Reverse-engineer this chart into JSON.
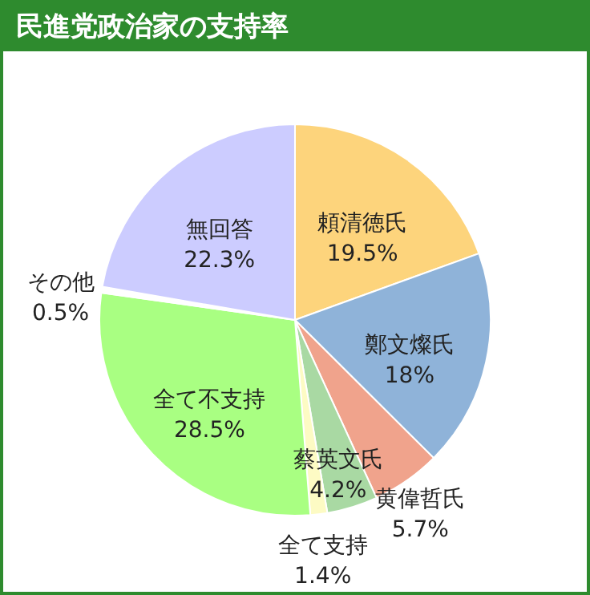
{
  "chart_data": {
    "type": "pie",
    "title": "民進党政治家の支持率",
    "categories": [
      "頼清徳氏",
      "鄭文燦氏",
      "黄偉哲氏",
      "蔡英文氏",
      "全て支持",
      "全て不支持",
      "その他",
      "無回答"
    ],
    "values": [
      19.5,
      18,
      5.7,
      4.2,
      1.4,
      28.5,
      0.5,
      22.3
    ],
    "value_labels": [
      "19.5%",
      "18%",
      "5.7%",
      "4.2%",
      "1.4%",
      "28.5%",
      "0.5%",
      "22.3%"
    ],
    "colors": [
      "#fdd47c",
      "#8fb3d9",
      "#f0a38c",
      "#a9d9a3",
      "#fdfbc4",
      "#a9ff82",
      "#ffffff",
      "#ccccff"
    ]
  }
}
